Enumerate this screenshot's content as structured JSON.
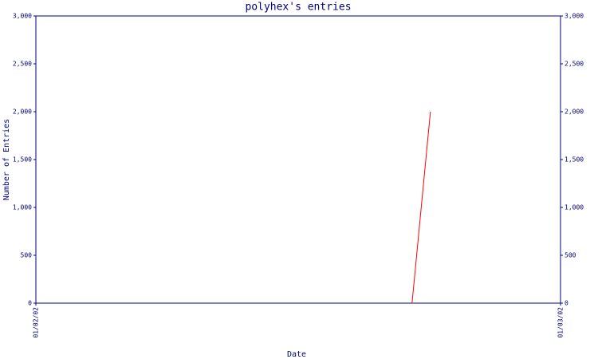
{
  "chart_data": {
    "type": "line",
    "title": "polyhex's entries",
    "x_label": "Date",
    "y_label": "Number of Entries",
    "x": [
      0.717,
      0.752
    ],
    "values": [
      0,
      2000
    ],
    "color": "#ff0000",
    "xlim": [
      0,
      1
    ],
    "xticks": [
      {
        "value": 0,
        "label": "01/02/02"
      },
      {
        "value": 1,
        "label": "01/03/02"
      }
    ],
    "ylim": [
      0,
      3000
    ],
    "yticks": [
      0,
      500,
      {
        "value": 1000,
        "label": "1,000"
      },
      {
        "value": 1500,
        "label": "1,500"
      },
      {
        "value": 2000,
        "label": "2,000"
      },
      {
        "value": 2500,
        "label": "2,500"
      },
      {
        "value": 3000,
        "label": "3,000"
      }
    ],
    "y2lim": [
      0,
      3000
    ],
    "y2ticks": [
      0,
      500,
      {
        "value": 1000,
        "label": "1,000"
      },
      {
        "value": 1500,
        "label": "1,500"
      },
      {
        "value": 2000,
        "label": "2,000"
      },
      {
        "value": 2500,
        "label": "2,500"
      },
      {
        "value": 3000,
        "label": "3,000"
      }
    ]
  }
}
